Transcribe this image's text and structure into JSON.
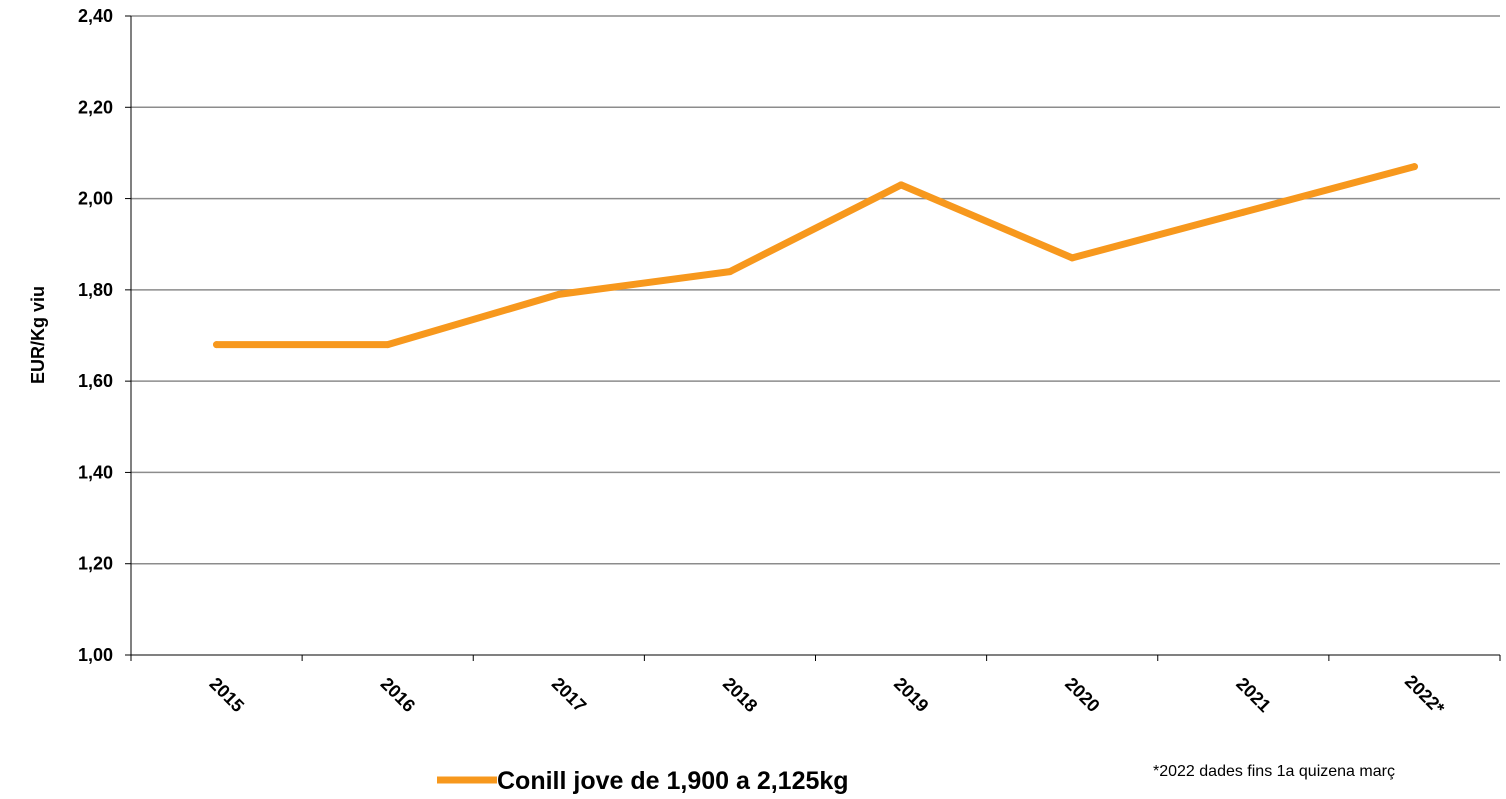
{
  "chart_data": {
    "type": "line",
    "categories": [
      "2015",
      "2016",
      "2017",
      "2018",
      "2019",
      "2020",
      "2021",
      "2022*"
    ],
    "series": [
      {
        "name": "Conill jove de 1,900 a 2,125kg",
        "values": [
          1.68,
          1.68,
          1.79,
          1.84,
          2.03,
          1.87,
          1.97,
          2.07
        ],
        "color": "#F7981D"
      }
    ],
    "ylabel": "EUR/Kg viu",
    "ylim": [
      1.0,
      2.4
    ],
    "yticks": [
      "1,00",
      "1,20",
      "1,40",
      "1,60",
      "1,80",
      "2,00",
      "2,20",
      "2,40"
    ],
    "grid": true,
    "legend_placement": "bottom-center",
    "footnote": "*2022 dades fins 1a quizena març"
  }
}
